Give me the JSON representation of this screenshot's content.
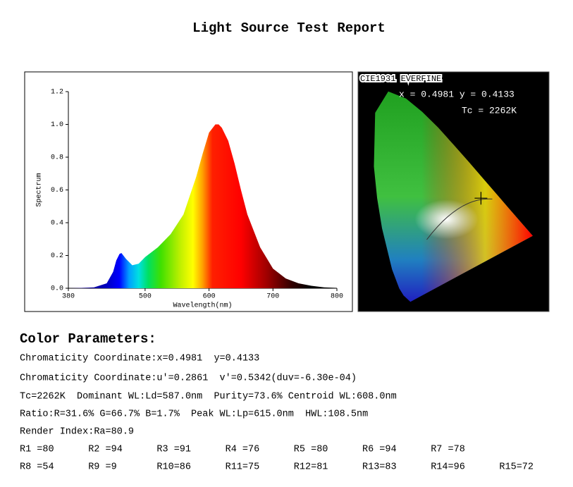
{
  "header": {
    "title": "Light Source Test Report"
  },
  "chart_data": {
    "type": "area",
    "x_label": "Wavelength(nm)",
    "y_label": "Spectrum",
    "x": [
      380,
      400,
      420,
      440,
      450,
      455,
      460,
      463,
      470,
      480,
      490,
      500,
      520,
      540,
      560,
      580,
      590,
      600,
      610,
      615,
      620,
      630,
      640,
      650,
      660,
      680,
      700,
      720,
      740,
      760,
      780,
      800
    ],
    "values": [
      0,
      0.002,
      0.005,
      0.03,
      0.1,
      0.17,
      0.21,
      0.215,
      0.18,
      0.14,
      0.15,
      0.19,
      0.25,
      0.33,
      0.45,
      0.68,
      0.82,
      0.95,
      1.0,
      1.0,
      0.98,
      0.9,
      0.76,
      0.6,
      0.45,
      0.25,
      0.12,
      0.06,
      0.03,
      0.015,
      0.005,
      0.002
    ],
    "xlim": [
      380,
      800
    ],
    "xticks": [
      380,
      500,
      600,
      700,
      800
    ],
    "ylim": [
      0,
      1.2
    ],
    "yticks": [
      {
        "value": 0,
        "label": "0.0"
      },
      {
        "value": 0.2,
        "label": "0.2"
      },
      {
        "value": 0.4,
        "label": "0.4"
      },
      {
        "value": 0.6,
        "label": "0.6"
      },
      {
        "value": 0.8,
        "label": "0.8"
      },
      {
        "value": 1.0,
        "label": "1.0"
      },
      {
        "value": 1.2,
        "label": "1.2"
      }
    ]
  },
  "cie": {
    "title": "CIE1931 EVERFINE",
    "coordinates": "x = 0.4981 y = 0.4133",
    "tc": "Tc = 2262K"
  },
  "parameters": {
    "heading": "Color Parameters:",
    "lines": [
      "Chromaticity Coordinate:x=0.4981  y=0.4133",
      "Chromaticity Coordinate:u'=0.2861  v'=0.5342(duv=-6.30e-04)",
      "Tc=2262K  Dominant WL:Ld=587.0nm  Purity=73.6% Centroid WL:608.0nm",
      "Ratio:R=31.6% G=66.7% B=1.7%  Peak WL:Lp=615.0nm  HWL:108.5nm",
      "Render Index:Ra=80.9"
    ],
    "render_rows": [
      [
        "R1 =80",
        "R2 =94",
        "R3 =91",
        "R4 =76",
        "R5 =80",
        "R6 =94",
        "R7 =78"
      ],
      [
        "R8 =54",
        "R9 =9",
        "R10=86",
        "R11=75",
        "R12=81",
        "R13=83",
        "R14=96",
        "R15=72"
      ]
    ]
  }
}
